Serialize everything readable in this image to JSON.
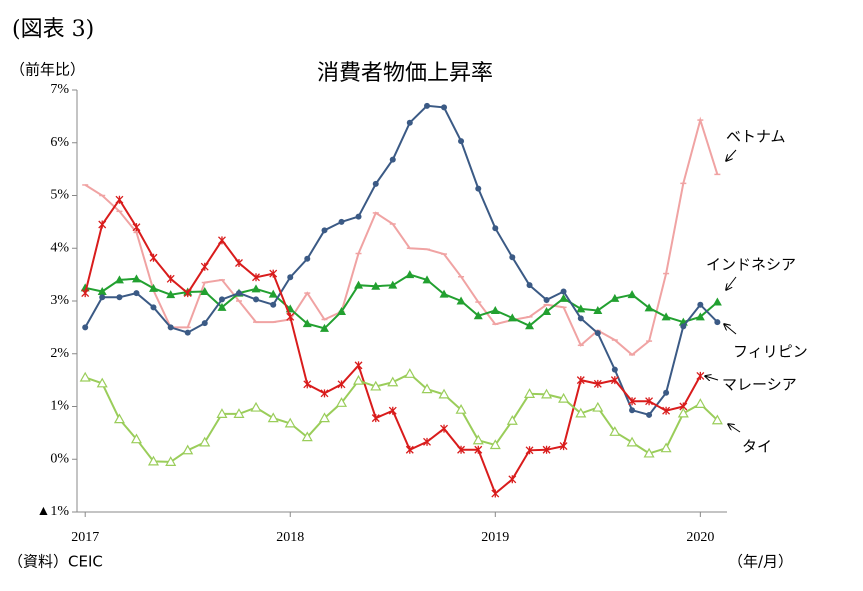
{
  "chart_data": {
    "type": "line",
    "figure_label": "(図表 3)",
    "title": "消費者物価上昇率",
    "y_label": "（前年比）",
    "x_label": "（年/月）",
    "source": "（資料）CEIC",
    "xlim": [
      2016.96,
      2020.13
    ],
    "xticks": [
      2017,
      2018,
      2019,
      2020
    ],
    "ylim": [
      -1,
      7
    ],
    "yticks": [
      {
        "value": -1,
        "label": "▲1%"
      },
      {
        "value": 0,
        "label": "0%"
      },
      {
        "value": 1,
        "label": "1%"
      },
      {
        "value": 2,
        "label": "2%"
      },
      {
        "value": 3,
        "label": "3%"
      },
      {
        "value": 4,
        "label": "4%"
      },
      {
        "value": 5,
        "label": "5%"
      },
      {
        "value": 6,
        "label": "6%"
      },
      {
        "value": 7,
        "label": "7%"
      }
    ],
    "grid": false,
    "x": [
      2017.0,
      2017.083,
      2017.167,
      2017.25,
      2017.333,
      2017.417,
      2017.5,
      2017.583,
      2017.667,
      2017.75,
      2017.833,
      2017.917,
      2018.0,
      2018.083,
      2018.167,
      2018.25,
      2018.333,
      2018.417,
      2018.5,
      2018.583,
      2018.667,
      2018.75,
      2018.833,
      2018.917,
      2019.0,
      2019.083,
      2019.167,
      2019.25,
      2019.333,
      2019.417,
      2019.5,
      2019.583,
      2019.667,
      2019.75,
      2019.833,
      2019.917,
      2020.0,
      2020.083
    ],
    "series": [
      {
        "name": "ベトナム",
        "color": "#f0a3a3",
        "marker": "dash",
        "values": [
          5.2,
          5.0,
          4.7,
          4.3,
          3.2,
          2.5,
          2.5,
          3.35,
          3.4,
          3.0,
          2.6,
          2.6,
          2.65,
          3.15,
          2.65,
          2.8,
          3.9,
          4.67,
          4.46,
          4.0,
          3.98,
          3.89,
          3.46,
          2.98,
          2.56,
          2.64,
          2.7,
          2.93,
          2.88,
          2.16,
          2.44,
          2.26,
          1.98,
          2.24,
          3.52,
          5.23,
          6.43,
          5.4
        ]
      },
      {
        "name": "インドネシア",
        "color": "#22a030",
        "marker": "triangle",
        "values": [
          3.25,
          3.18,
          3.4,
          3.42,
          3.24,
          3.12,
          3.17,
          3.18,
          2.88,
          3.15,
          3.23,
          3.13,
          2.85,
          2.57,
          2.48,
          2.8,
          3.3,
          3.28,
          3.3,
          3.5,
          3.4,
          3.13,
          3.0,
          2.72,
          2.82,
          2.68,
          2.53,
          2.8,
          3.05,
          2.85,
          2.82,
          3.05,
          3.12,
          2.87,
          2.7,
          2.6,
          2.7,
          2.98
        ]
      },
      {
        "name": "フィリピン",
        "color": "#3b5a85",
        "marker": "circle",
        "values": [
          2.5,
          3.07,
          3.07,
          3.15,
          2.88,
          2.5,
          2.4,
          2.58,
          3.03,
          3.15,
          3.03,
          2.93,
          3.45,
          3.8,
          4.34,
          4.5,
          4.6,
          5.22,
          5.68,
          6.38,
          6.7,
          6.67,
          6.03,
          5.13,
          4.38,
          3.83,
          3.3,
          3.02,
          3.18,
          2.67,
          2.39,
          1.7,
          0.93,
          0.84,
          1.26,
          2.52,
          2.93,
          2.6
        ]
      },
      {
        "name": "マレーシア",
        "color": "#d91c1c",
        "marker": "cross",
        "values": [
          3.15,
          4.45,
          4.92,
          4.4,
          3.82,
          3.42,
          3.15,
          3.65,
          4.15,
          3.72,
          3.45,
          3.52,
          2.7,
          1.42,
          1.25,
          1.42,
          1.78,
          0.78,
          0.92,
          0.18,
          0.33,
          0.58,
          0.18,
          0.18,
          -0.65,
          -0.38,
          0.17,
          0.18,
          0.25,
          1.5,
          1.43,
          1.5,
          1.1,
          1.1,
          0.92,
          1.0,
          1.58,
          null
        ]
      },
      {
        "name": "タイ",
        "color": "#9acd5a",
        "marker": "open-triangle",
        "values": [
          1.55,
          1.44,
          0.76,
          0.38,
          -0.04,
          -0.05,
          0.17,
          0.32,
          0.86,
          0.86,
          0.98,
          0.78,
          0.68,
          0.42,
          0.78,
          1.07,
          1.49,
          1.38,
          1.46,
          1.62,
          1.33,
          1.23,
          0.94,
          0.36,
          0.27,
          0.73,
          1.24,
          1.23,
          1.15,
          0.87,
          0.98,
          0.52,
          0.32,
          0.11,
          0.21,
          0.87,
          1.05,
          0.74
        ]
      }
    ]
  }
}
